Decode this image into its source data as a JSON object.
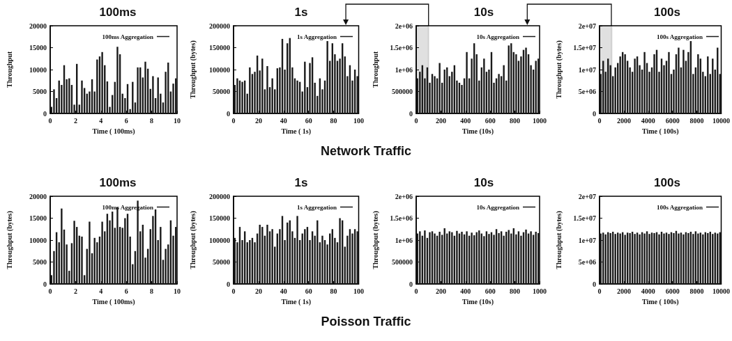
{
  "chart_data": [
    {
      "type": "bar",
      "title": "100ms",
      "xlabel": "Time ( 100ms)",
      "ylabel": "Throughput",
      "legend": "top right",
      "grid": false,
      "annotations": [
        "Network Traffic"
      ],
      "xlim": [
        0,
        10
      ],
      "xticks": [
        0,
        2,
        4,
        6,
        8,
        10
      ],
      "ylim": [
        0,
        20000
      ],
      "yticks": [
        0,
        5000,
        10000,
        15000,
        20000
      ],
      "x": [
        0.1,
        0.3,
        0.5,
        0.7,
        0.9,
        1.1,
        1.3,
        1.5,
        1.7,
        1.9,
        2.1,
        2.3,
        2.5,
        2.7,
        2.9,
        3.1,
        3.3,
        3.5,
        3.7,
        3.9,
        4.1,
        4.3,
        4.5,
        4.7,
        4.9,
        5.1,
        5.3,
        5.5,
        5.7,
        5.9,
        6.1,
        6.3,
        6.5,
        6.7,
        6.9,
        7.1,
        7.3,
        7.5,
        7.7,
        7.9,
        8.1,
        8.3,
        8.5,
        8.7,
        8.9,
        9.1,
        9.3,
        9.5,
        9.7,
        9.9
      ],
      "series": [
        {
          "name": "100ms Aggregation",
          "color": "#1a1a1a",
          "values": [
            1500,
            5500,
            3500,
            7500,
            6500,
            11000,
            7800,
            8000,
            6500,
            2000,
            11300,
            2000,
            7500,
            5800,
            4500,
            5000,
            7800,
            5000,
            12300,
            13000,
            14000,
            11000,
            7300,
            1500,
            4200,
            7200,
            15200,
            13500,
            4500,
            3500,
            6700,
            1000,
            7200,
            2500,
            10500,
            10500,
            8200,
            11800,
            10200,
            5600,
            8500,
            3500,
            8200,
            4500,
            2500,
            9500,
            11600,
            5000,
            6800,
            8000
          ]
        }
      ]
    },
    {
      "type": "bar",
      "title": "1s",
      "xlabel": "Time ( 1s)",
      "ylabel": "Throughput (bytes)",
      "legend": "top right",
      "grid": false,
      "xlim": [
        0,
        100
      ],
      "xticks": [
        0,
        20,
        40,
        60,
        80,
        100
      ],
      "ylim": [
        0,
        200000
      ],
      "yticks": [
        0,
        50000,
        100000,
        150000,
        200000
      ],
      "x": [
        1,
        3,
        5,
        7,
        9,
        11,
        13,
        15,
        17,
        19,
        21,
        23,
        25,
        27,
        29,
        31,
        33,
        35,
        37,
        39,
        41,
        43,
        45,
        47,
        49,
        51,
        53,
        55,
        57,
        59,
        61,
        63,
        65,
        67,
        69,
        71,
        73,
        75,
        77,
        79,
        81,
        83,
        85,
        87,
        89,
        91,
        93,
        95,
        97,
        99
      ],
      "series": [
        {
          "name": "1s Aggregation",
          "color": "#1a1a1a",
          "values": [
            65000,
            80000,
            75000,
            72000,
            75000,
            45000,
            105000,
            90000,
            95000,
            132000,
            98000,
            125000,
            55000,
            108000,
            60000,
            80000,
            55000,
            103000,
            105000,
            170000,
            100000,
            160000,
            172000,
            105000,
            80000,
            75000,
            72000,
            50000,
            118000,
            60000,
            115000,
            128000,
            70000,
            40000,
            80000,
            55000,
            75000,
            165000,
            120000,
            160000,
            135000,
            120000,
            125000,
            160000,
            130000,
            85000,
            110000,
            75000,
            100000,
            85000
          ]
        }
      ]
    },
    {
      "type": "bar",
      "title": "10s",
      "xlabel": "Time (10s)",
      "ylabel": "Throughput",
      "legend": "top right",
      "grid": false,
      "xlim": [
        0,
        1000
      ],
      "xticks": [
        0,
        200,
        400,
        600,
        800,
        1000
      ],
      "ylim": [
        0,
        2000000
      ],
      "yticks": [
        0,
        500000,
        {
          "value": 1000000,
          "label": "1e+06"
        },
        {
          "value": 1500000,
          "label": "1.5e+06"
        },
        {
          "value": 2000000,
          "label": "2e+06"
        }
      ],
      "bands": [
        {
          "axis": "x",
          "from": 0,
          "to": 100,
          "color": "#000000"
        }
      ],
      "x": [
        10,
        30,
        50,
        70,
        90,
        110,
        130,
        150,
        170,
        190,
        210,
        230,
        250,
        270,
        290,
        310,
        330,
        350,
        370,
        390,
        410,
        430,
        450,
        470,
        490,
        510,
        530,
        550,
        570,
        590,
        610,
        630,
        650,
        670,
        690,
        710,
        730,
        750,
        770,
        790,
        810,
        830,
        850,
        870,
        890,
        910,
        930,
        950,
        970,
        990
      ],
      "series": [
        {
          "name": "10s Aggregation",
          "color": "#1a1a1a",
          "values": [
            800000,
            950000,
            1100000,
            800000,
            1050000,
            700000,
            900000,
            850000,
            800000,
            1150000,
            700000,
            1000000,
            1050000,
            850000,
            950000,
            1100000,
            750000,
            700000,
            650000,
            800000,
            1400000,
            800000,
            1250000,
            1600000,
            1350000,
            750000,
            1050000,
            1250000,
            950000,
            1000000,
            1400000,
            700000,
            800000,
            900000,
            850000,
            1100000,
            750000,
            1550000,
            1600000,
            1400000,
            1350000,
            1200000,
            1300000,
            1450000,
            1500000,
            1350000,
            1100000,
            1000000,
            1200000,
            1250000
          ]
        }
      ]
    },
    {
      "type": "bar",
      "title": "100s",
      "xlabel": "Time ( 100s)",
      "ylabel": "Throughput (bytes)",
      "legend": "top right",
      "grid": false,
      "xlim": [
        0,
        10000
      ],
      "xticks": [
        0,
        2000,
        4000,
        6000,
        8000,
        10000
      ],
      "ylim": [
        0,
        20000000
      ],
      "yticks": [
        0,
        {
          "value": 5000000,
          "label": "5e+06"
        },
        {
          "value": 10000000,
          "label": "1e+07"
        },
        {
          "value": 15000000,
          "label": "1.5e+07"
        },
        {
          "value": 20000000,
          "label": "2e+07"
        }
      ],
      "bands": [
        {
          "axis": "x",
          "from": 0,
          "to": 1000,
          "color": "#000000"
        }
      ],
      "x": [
        100,
        300,
        500,
        700,
        900,
        1100,
        1300,
        1500,
        1700,
        1900,
        2100,
        2300,
        2500,
        2700,
        2900,
        3100,
        3300,
        3500,
        3700,
        3900,
        4100,
        4300,
        4500,
        4700,
        4900,
        5100,
        5300,
        5500,
        5700,
        5900,
        6100,
        6300,
        6500,
        6700,
        6900,
        7100,
        7300,
        7500,
        7700,
        7900,
        8100,
        8300,
        8500,
        8700,
        8900,
        9100,
        9300,
        9500,
        9700,
        9900
      ],
      "series": [
        {
          "name": "100s Aggregation",
          "color": "#1a1a1a",
          "values": [
            9000000,
            12000000,
            9500000,
            12500000,
            11000000,
            8500000,
            10500000,
            11500000,
            13000000,
            14000000,
            13500000,
            12000000,
            10500000,
            9500000,
            12500000,
            13000000,
            11000000,
            10000000,
            14000000,
            11500000,
            9500000,
            10500000,
            13500000,
            14500000,
            9500000,
            12500000,
            11000000,
            12000000,
            14000000,
            9000000,
            10000000,
            13500000,
            15000000,
            10500000,
            14500000,
            12000000,
            14000000,
            16500000,
            9000000,
            10500000,
            13500000,
            12500000,
            9500000,
            8500000,
            13000000,
            9000000,
            12500000,
            10000000,
            15000000,
            9000000
          ]
        }
      ]
    },
    {
      "type": "bar",
      "title": "100ms",
      "xlabel": "Time ( 100ms)",
      "ylabel": "Throughput (bytes)",
      "legend": "top right",
      "grid": false,
      "annotations": [
        "Poisson Traffic"
      ],
      "xlim": [
        0,
        10
      ],
      "xticks": [
        0,
        2,
        4,
        6,
        8,
        10
      ],
      "ylim": [
        0,
        20000
      ],
      "yticks": [
        0,
        5000,
        10000,
        15000,
        20000
      ],
      "x": [
        0.1,
        0.3,
        0.5,
        0.7,
        0.9,
        1.1,
        1.3,
        1.5,
        1.7,
        1.9,
        2.1,
        2.3,
        2.5,
        2.7,
        2.9,
        3.1,
        3.3,
        3.5,
        3.7,
        3.9,
        4.1,
        4.3,
        4.5,
        4.7,
        4.9,
        5.1,
        5.3,
        5.5,
        5.7,
        5.9,
        6.1,
        6.3,
        6.5,
        6.7,
        6.9,
        7.1,
        7.3,
        7.5,
        7.7,
        7.9,
        8.1,
        8.3,
        8.5,
        8.7,
        8.9,
        9.1,
        9.3,
        9.5,
        9.7,
        9.9
      ],
      "series": [
        {
          "name": "100ms Aggregation",
          "color": "#1a1a1a",
          "values": [
            2000,
            7500,
            11800,
            9500,
            17200,
            12400,
            9000,
            3000,
            9300,
            14400,
            13000,
            11000,
            10800,
            2000,
            8000,
            14200,
            7000,
            10500,
            9500,
            10800,
            14200,
            12000,
            16000,
            14500,
            16500,
            12800,
            17500,
            13000,
            12800,
            15000,
            16000,
            10800,
            4500,
            7500,
            19000,
            12000,
            13500,
            6000,
            8000,
            12500,
            15500,
            17000,
            10000,
            13000,
            5500,
            8000,
            9000,
            14500,
            11000,
            13000
          ]
        }
      ]
    },
    {
      "type": "bar",
      "title": "1s",
      "xlabel": "Time ( 1s)",
      "ylabel": "Throughput (bytes)",
      "legend": "top right",
      "grid": false,
      "xlim": [
        0,
        100
      ],
      "xticks": [
        0,
        20,
        40,
        60,
        80,
        100
      ],
      "ylim": [
        0,
        200000
      ],
      "yticks": [
        0,
        50000,
        100000,
        150000,
        200000
      ],
      "x": [
        1,
        3,
        5,
        7,
        9,
        11,
        13,
        15,
        17,
        19,
        21,
        23,
        25,
        27,
        29,
        31,
        33,
        35,
        37,
        39,
        41,
        43,
        45,
        47,
        49,
        51,
        53,
        55,
        57,
        59,
        61,
        63,
        65,
        67,
        69,
        71,
        73,
        75,
        77,
        79,
        81,
        83,
        85,
        87,
        89,
        91,
        93,
        95,
        97,
        99
      ],
      "series": [
        {
          "name": "1s Aggregation",
          "color": "#1a1a1a",
          "values": [
            105000,
            95000,
            130000,
            100000,
            120000,
            95000,
            100000,
            105000,
            95000,
            115000,
            135000,
            130000,
            110000,
            135000,
            120000,
            125000,
            85000,
            115000,
            125000,
            155000,
            100000,
            140000,
            145000,
            120000,
            105000,
            155000,
            100000,
            115000,
            125000,
            130000,
            100000,
            120000,
            110000,
            145000,
            95000,
            110000,
            100000,
            90000,
            115000,
            125000,
            105000,
            95000,
            150000,
            145000,
            85000,
            110000,
            125000,
            115000,
            125000,
            120000
          ]
        }
      ]
    },
    {
      "type": "bar",
      "title": "10s",
      "xlabel": "Time (10s)",
      "ylabel": "Throughput (bytes)",
      "legend": "top right",
      "grid": false,
      "xlim": [
        0,
        1000
      ],
      "xticks": [
        0,
        200,
        400,
        600,
        800,
        1000
      ],
      "ylim": [
        0,
        2000000
      ],
      "yticks": [
        0,
        500000,
        {
          "value": 1000000,
          "label": "1e+06"
        },
        {
          "value": 1500000,
          "label": "1.5e+06"
        },
        {
          "value": 2000000,
          "label": "2e+06"
        }
      ],
      "x": [
        10,
        30,
        50,
        70,
        90,
        110,
        130,
        150,
        170,
        190,
        210,
        230,
        250,
        270,
        290,
        310,
        330,
        350,
        370,
        390,
        410,
        430,
        450,
        470,
        490,
        510,
        530,
        550,
        570,
        590,
        610,
        630,
        650,
        670,
        690,
        710,
        730,
        750,
        770,
        790,
        810,
        830,
        850,
        870,
        890,
        910,
        930,
        950,
        970,
        990
      ],
      "series": [
        {
          "name": "10s Aggregation",
          "color": "#1a1a1a",
          "values": [
            1150000,
            1200000,
            1100000,
            1220000,
            1050000,
            1180000,
            1200000,
            1150000,
            1100000,
            1190000,
            1120000,
            1270000,
            1150000,
            1200000,
            1180000,
            1100000,
            1210000,
            1150000,
            1190000,
            1130000,
            1200000,
            1100000,
            1170000,
            1110000,
            1180000,
            1220000,
            1150000,
            1090000,
            1200000,
            1140000,
            1180000,
            1120000,
            1250000,
            1160000,
            1200000,
            1100000,
            1190000,
            1230000,
            1150000,
            1270000,
            1130000,
            1200000,
            1100000,
            1180000,
            1240000,
            1150000,
            1200000,
            1120000,
            1190000,
            1160000
          ]
        }
      ]
    },
    {
      "type": "bar",
      "title": "100s",
      "xlabel": "Time ( 100s)",
      "ylabel": "Throughput (bytes)",
      "legend": "top right",
      "grid": false,
      "xlim": [
        0,
        10000
      ],
      "xticks": [
        0,
        2000,
        4000,
        6000,
        8000,
        10000
      ],
      "ylim": [
        0,
        20000000
      ],
      "yticks": [
        0,
        {
          "value": 5000000,
          "label": "5e+06"
        },
        {
          "value": 10000000,
          "label": "1e+07"
        },
        {
          "value": 15000000,
          "label": "1.5e+07"
        },
        {
          "value": 20000000,
          "label": "2e+07"
        }
      ],
      "x": [
        100,
        300,
        500,
        700,
        900,
        1100,
        1300,
        1500,
        1700,
        1900,
        2100,
        2300,
        2500,
        2700,
        2900,
        3100,
        3300,
        3500,
        3700,
        3900,
        4100,
        4300,
        4500,
        4700,
        4900,
        5100,
        5300,
        5500,
        5700,
        5900,
        6100,
        6300,
        6500,
        6700,
        6900,
        7100,
        7300,
        7500,
        7700,
        7900,
        8100,
        8300,
        8500,
        8700,
        8900,
        9100,
        9300,
        9500,
        9700,
        9900
      ],
      "series": [
        {
          "name": "100s Aggregation",
          "color": "#1a1a1a",
          "values": [
            11500000,
            11700000,
            11300000,
            11800000,
            11600000,
            11900000,
            11400000,
            11700000,
            11500000,
            11800000,
            11200000,
            11700000,
            11600000,
            11900000,
            11400000,
            11700000,
            11300000,
            11800000,
            11500000,
            12000000,
            11400000,
            11700000,
            11600000,
            11800000,
            11300000,
            11900000,
            11500000,
            11700000,
            11400000,
            11800000,
            11600000,
            12100000,
            11500000,
            11700000,
            11300000,
            11800000,
            11600000,
            11900000,
            11400000,
            12000000,
            11500000,
            11700000,
            11300000,
            11800000,
            11600000,
            11900000,
            11400000,
            11700000,
            11500000,
            11800000
          ]
        }
      ]
    }
  ]
}
